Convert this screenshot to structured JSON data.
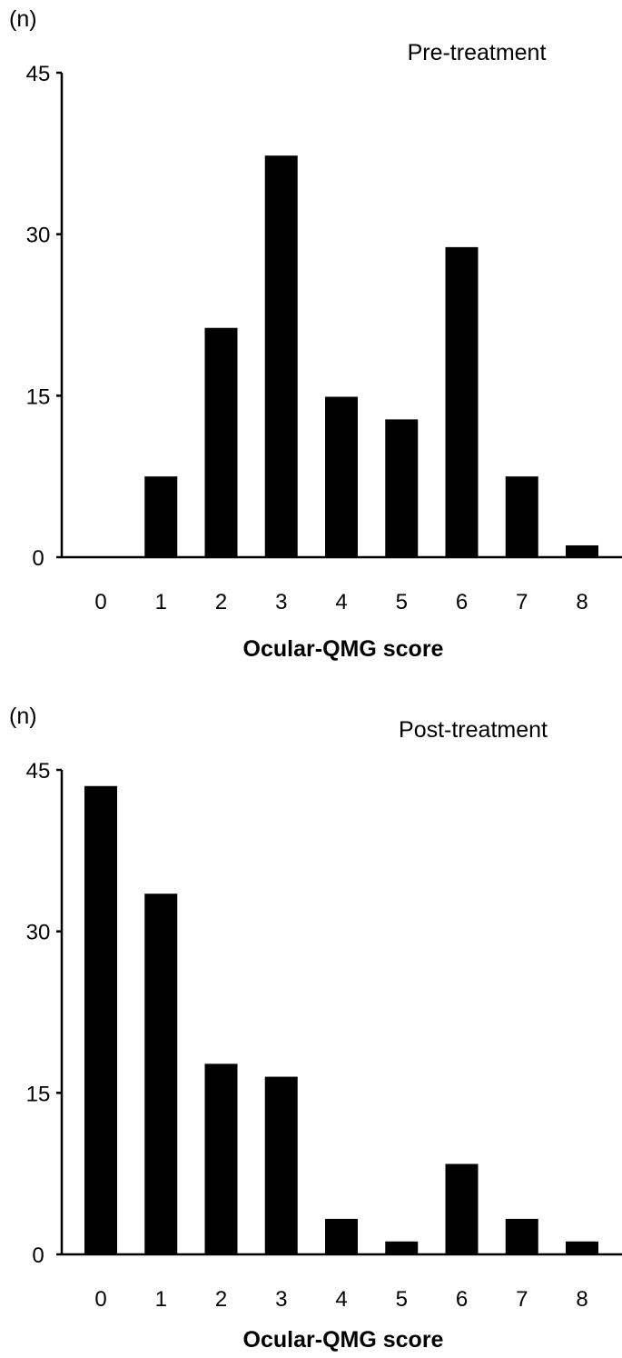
{
  "chart_data": [
    {
      "type": "bar",
      "title": "Pre-treatment",
      "ylabel": "(n)",
      "xlabel": "Ocular-QMG score",
      "categories": [
        "0",
        "1",
        "2",
        "3",
        "4",
        "5",
        "6",
        "7",
        "8"
      ],
      "values": [
        0,
        7.5,
        21.3,
        37.3,
        14.9,
        12.8,
        28.8,
        7.5,
        1.1
      ],
      "yticks": [
        "0",
        "15",
        "30",
        "45"
      ],
      "ylim": [
        0,
        45
      ],
      "grid": false,
      "bar_color": "#000000"
    },
    {
      "type": "bar",
      "title": "Post-treatment",
      "ylabel": "(n)",
      "xlabel": "Ocular-QMG score",
      "categories": [
        "0",
        "1",
        "2",
        "3",
        "4",
        "5",
        "6",
        "7",
        "8"
      ],
      "values": [
        43.5,
        33.5,
        17.7,
        16.5,
        3.3,
        1.2,
        8.4,
        3.3,
        1.2
      ],
      "yticks": [
        "0",
        "15",
        "30",
        "45"
      ],
      "ylim": [
        0,
        45
      ],
      "grid": false,
      "bar_color": "#000000"
    }
  ]
}
